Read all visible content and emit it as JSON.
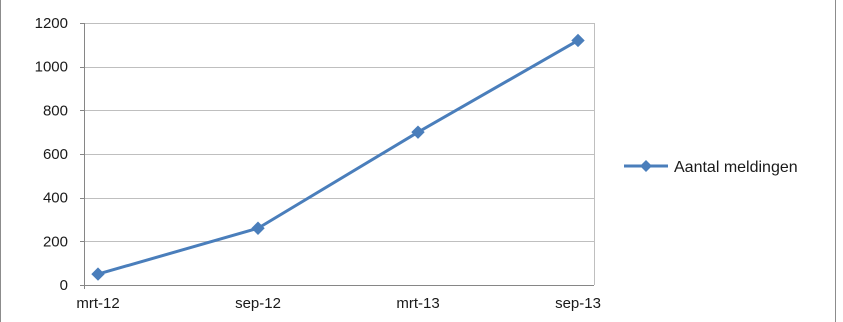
{
  "chart_data": {
    "type": "line",
    "categories": [
      "mrt-12",
      "sep-12",
      "mrt-13",
      "sep-13"
    ],
    "series": [
      {
        "name": "Aantal meldingen",
        "values": [
          50,
          260,
          700,
          1120
        ],
        "color": "#4a7ebb"
      }
    ],
    "ylim": [
      0,
      1200
    ],
    "yticks": [
      0,
      200,
      400,
      600,
      800,
      1000,
      1200
    ],
    "grid": true,
    "legend_position": "right",
    "title": "",
    "xlabel": "",
    "ylabel": ""
  },
  "colors": {
    "gridline": "#bfbfbf",
    "axis": "#868686",
    "frame": "#8c8c8c",
    "series": "#4a7ebb"
  }
}
